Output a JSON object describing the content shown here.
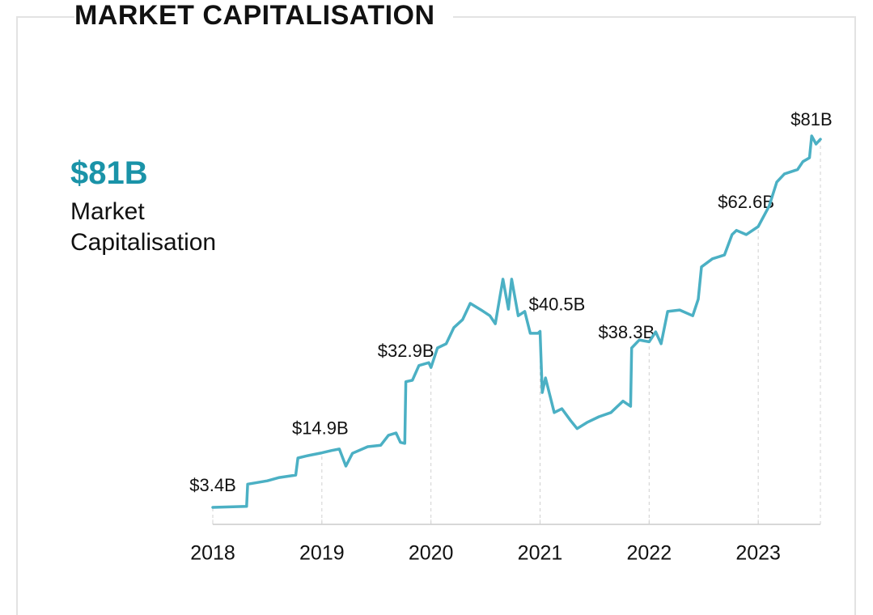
{
  "chart_data": {
    "type": "line",
    "title": "MARKET CAPITALISATION",
    "headline": "$81B",
    "headline_label": "Market Capitalisation",
    "color": "#4bb0c4",
    "xlim": [
      2018,
      2023.57
    ],
    "xticks": [
      2018,
      2019,
      2020,
      2021,
      2022,
      2023
    ],
    "x": [
      2018.0,
      2018.31,
      2018.32,
      2018.5,
      2018.61,
      2018.76,
      2018.78,
      2018.87,
      2019.0,
      2019.09,
      2019.16,
      2019.22,
      2019.28,
      2019.42,
      2019.54,
      2019.61,
      2019.68,
      2019.72,
      2019.76,
      2019.77,
      2019.83,
      2019.89,
      2019.98,
      2020.0,
      2020.06,
      2020.14,
      2020.21,
      2020.29,
      2020.36,
      2020.46,
      2020.54,
      2020.59,
      2020.66,
      2020.71,
      2020.74,
      2020.8,
      2020.86,
      2020.91,
      2020.98,
      2021.0,
      2021.02,
      2021.05,
      2021.13,
      2021.2,
      2021.28,
      2021.34,
      2021.43,
      2021.54,
      2021.65,
      2021.76,
      2021.83,
      2021.84,
      2021.91,
      2022.0,
      2022.06,
      2022.11,
      2022.17,
      2022.28,
      2022.4,
      2022.45,
      2022.48,
      2022.58,
      2022.69,
      2022.76,
      2022.8,
      2022.89,
      2023.0,
      2023.1,
      2023.17,
      2023.24,
      2023.36,
      2023.41,
      2023.47,
      2023.49,
      2023.53,
      2023.57
    ],
    "values": [
      3.4,
      3.6,
      8.3,
      9.0,
      9.7,
      10.2,
      13.8,
      14.3,
      14.9,
      15.4,
      15.7,
      12.1,
      14.8,
      16.2,
      16.5,
      18.6,
      19.1,
      17.1,
      16.9,
      29.9,
      30.2,
      33.3,
      33.9,
      32.9,
      37.0,
      37.9,
      41.3,
      43.0,
      46.4,
      45.0,
      43.8,
      42.1,
      51.5,
      45.2,
      51.5,
      43.8,
      44.7,
      40.1,
      40.1,
      40.5,
      27.6,
      30.7,
      23.4,
      24.2,
      21.7,
      20.0,
      21.3,
      22.5,
      23.4,
      25.8,
      24.7,
      37.0,
      38.7,
      38.3,
      40.4,
      37.9,
      44.7,
      45.0,
      43.8,
      47.3,
      54.1,
      55.8,
      56.6,
      60.9,
      61.8,
      60.9,
      62.6,
      66.9,
      72.0,
      73.7,
      74.6,
      76.3,
      77.1,
      81.7,
      80.0,
      81.0
    ],
    "annotations": [
      {
        "x": 2018,
        "value": 3.4,
        "label": "$3.4B"
      },
      {
        "x": 2019,
        "value": 14.9,
        "label": "$14.9B"
      },
      {
        "x": 2020,
        "value": 32.9,
        "label": "$32.9B"
      },
      {
        "x": 2021,
        "value": 40.5,
        "label": "$40.5B"
      },
      {
        "x": 2022,
        "value": 38.3,
        "label": "$38.3B"
      },
      {
        "x": 2023,
        "value": 62.6,
        "label": "$62.6B"
      },
      {
        "x": 2023.57,
        "value": 81,
        "label": "$81B"
      }
    ]
  }
}
